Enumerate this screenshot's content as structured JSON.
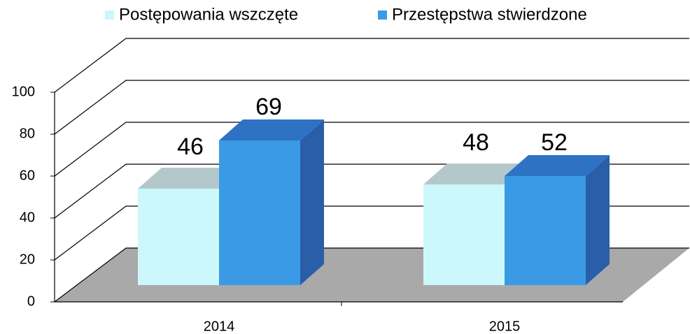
{
  "chart_data": {
    "type": "bar3d",
    "categories": [
      "2014",
      "2015"
    ],
    "series": [
      {
        "name": "Postępowania wszczęte",
        "color": "#ccf8fc",
        "values": [
          46,
          48
        ]
      },
      {
        "name": "Przestępstwa stwierdzone",
        "color": "#3a9ae6",
        "values": [
          69,
          52
        ]
      }
    ],
    "ylim": [
      0,
      100
    ],
    "yticks": [
      0,
      20,
      40,
      60,
      80,
      100
    ],
    "grid": true,
    "legend": "top"
  }
}
